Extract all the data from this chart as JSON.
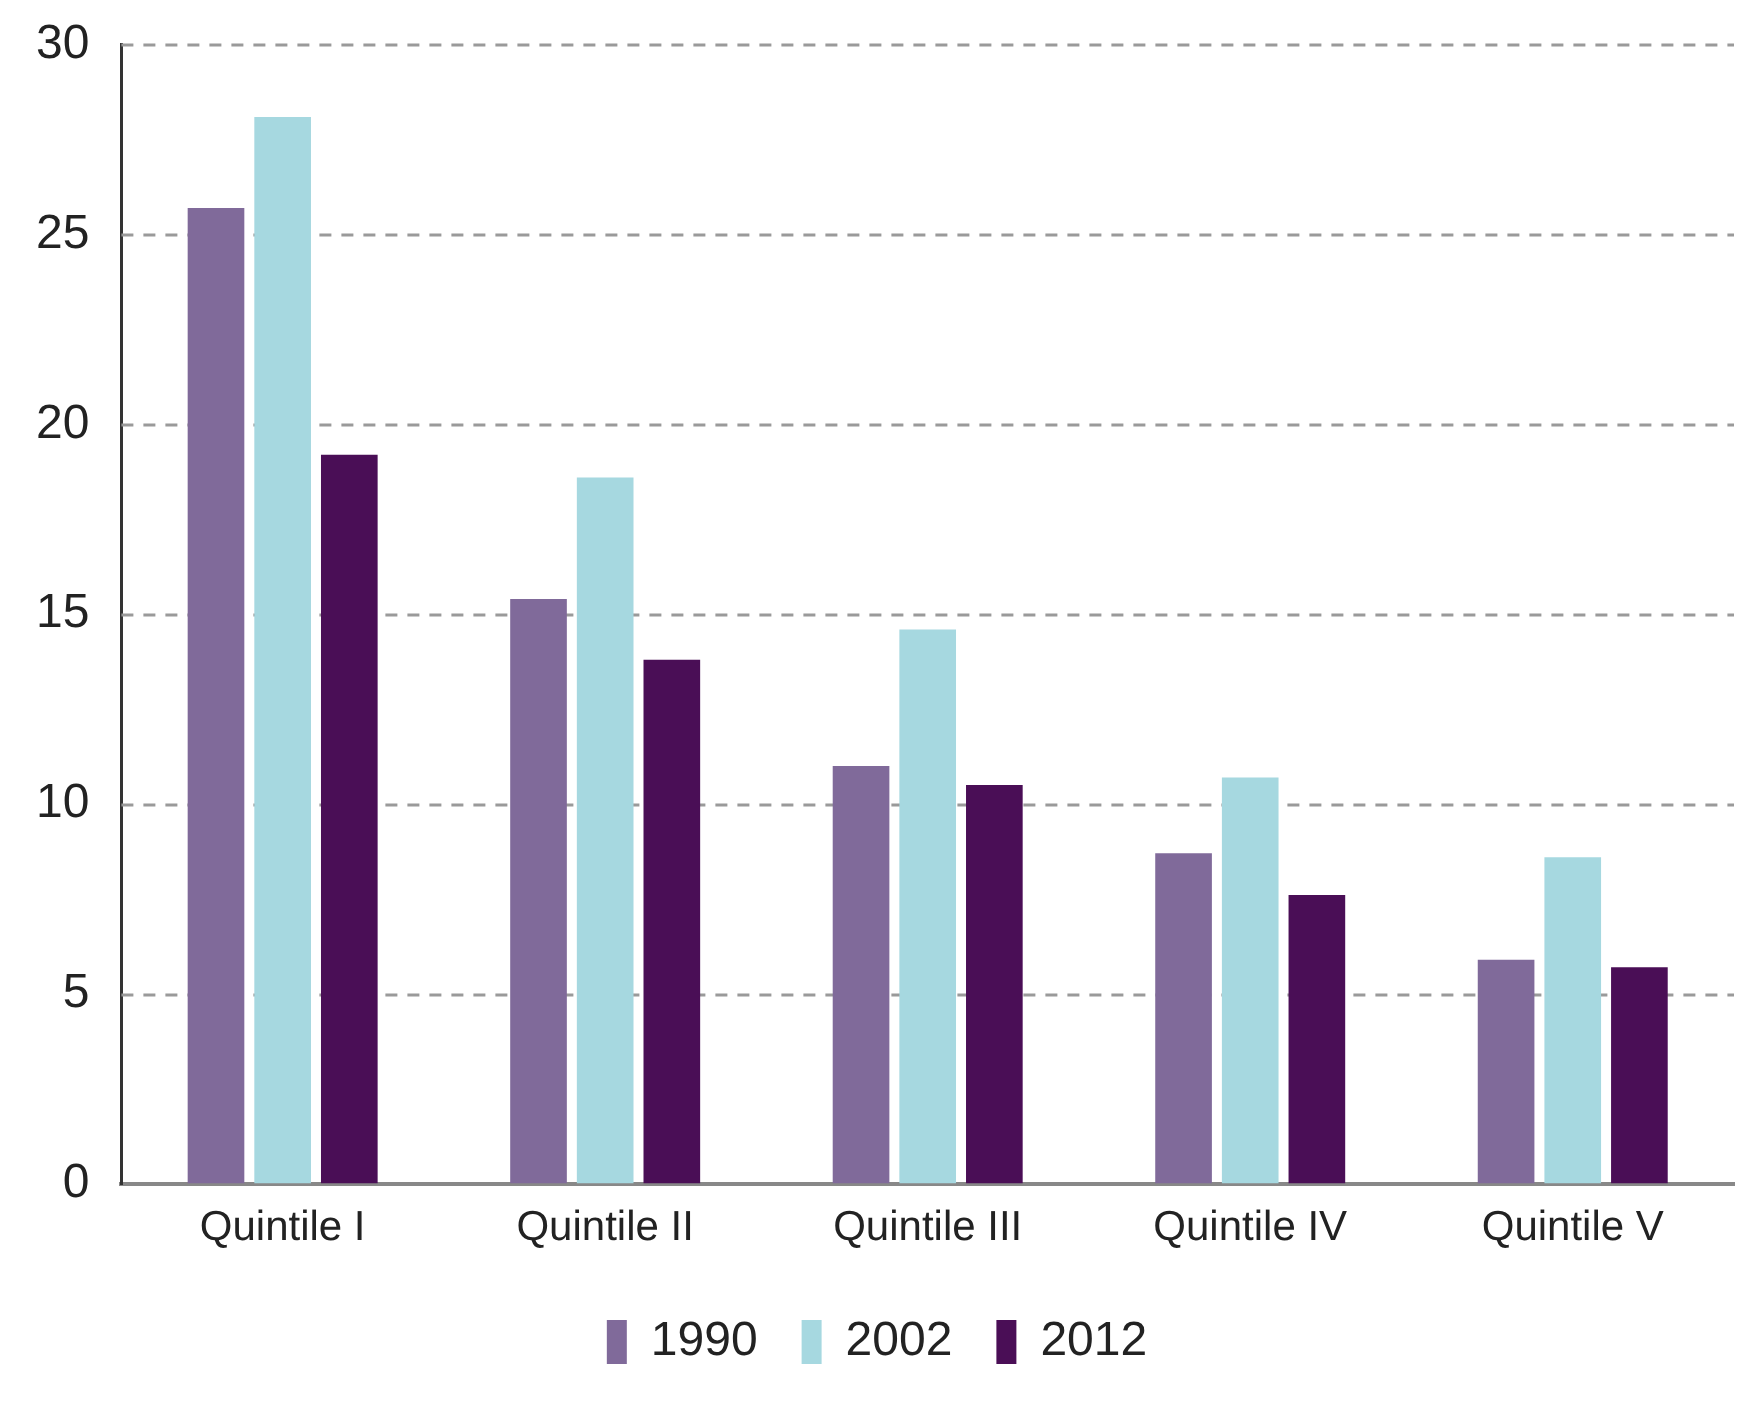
{
  "chart_data": {
    "type": "bar",
    "categories": [
      "Quintile I",
      "Quintile II",
      "Quintile III",
      "Quintile IV",
      "Quintile V"
    ],
    "series": [
      {
        "name": "1990",
        "color": "#806a9a",
        "values": [
          25.7,
          15.4,
          11.0,
          8.7,
          5.9
        ]
      },
      {
        "name": "2002",
        "color": "#a6d8e0",
        "values": [
          28.1,
          18.6,
          14.6,
          10.7,
          8.6
        ]
      },
      {
        "name": "2012",
        "color": "#4a0e56",
        "values": [
          19.2,
          13.8,
          10.5,
          7.6,
          5.7
        ]
      }
    ],
    "ylim": [
      0,
      30
    ],
    "yticks": [
      0,
      5,
      10,
      15,
      20,
      25,
      30
    ],
    "grid": "y",
    "legend": "bottom"
  }
}
